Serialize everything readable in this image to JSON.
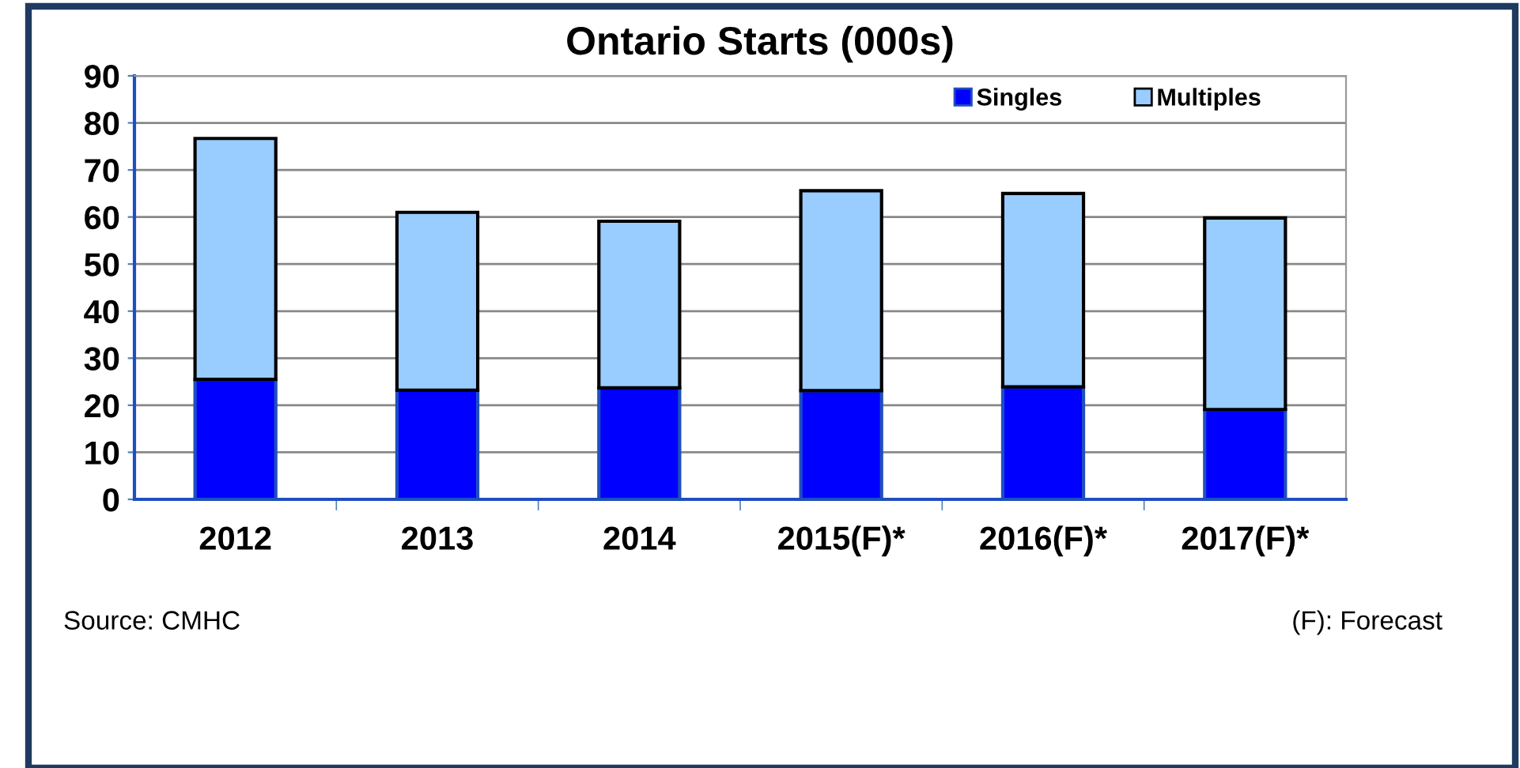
{
  "chart_data": {
    "type": "bar",
    "title": "Ontario Starts (000s)",
    "stacked": true,
    "categories": [
      "2012",
      "2013",
      "2014",
      "2015(F)*",
      "2016(F)*",
      "2017(F)*"
    ],
    "series": [
      {
        "name": "Singles",
        "color": "#0000ff",
        "values": [
          25.5,
          23.2,
          23.7,
          23.1,
          23.9,
          19.1
        ]
      },
      {
        "name": "Multiples",
        "color": "#99ccff",
        "values": [
          51.2,
          37.8,
          35.4,
          42.5,
          41.1,
          40.7
        ]
      }
    ],
    "ylim": [
      0,
      90
    ],
    "yticks": [
      0,
      10,
      20,
      30,
      40,
      50,
      60,
      70,
      80,
      90
    ],
    "grid": "y",
    "legend": "top right",
    "annotations": [
      "Source: CMHC",
      "(F): Forecast"
    ]
  }
}
